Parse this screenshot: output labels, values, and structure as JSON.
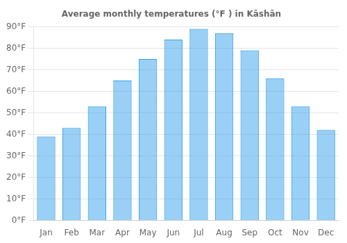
{
  "chart_data": {
    "type": "bar",
    "title": "Average monthly temperatures (°F ) in Kāshān",
    "categories": [
      "Jan",
      "Feb",
      "Mar",
      "Apr",
      "May",
      "Jun",
      "Jul",
      "Aug",
      "Sep",
      "Oct",
      "Nov",
      "Dec"
    ],
    "values": [
      39,
      43,
      53,
      65,
      75,
      84,
      89,
      87,
      79,
      66,
      53,
      42
    ],
    "ylim": [
      0,
      90
    ],
    "yticks": [
      {
        "value": 0,
        "label": "0°F"
      },
      {
        "value": 10,
        "label": "10°F"
      },
      {
        "value": 20,
        "label": "20°F"
      },
      {
        "value": 30,
        "label": "30°F"
      },
      {
        "value": 40,
        "label": "40°F"
      },
      {
        "value": 50,
        "label": "50°F"
      },
      {
        "value": 60,
        "label": "60°F"
      },
      {
        "value": 70,
        "label": "70°F"
      },
      {
        "value": 80,
        "label": "80°F"
      },
      {
        "value": 90,
        "label": "90°F"
      }
    ],
    "grid": true
  }
}
